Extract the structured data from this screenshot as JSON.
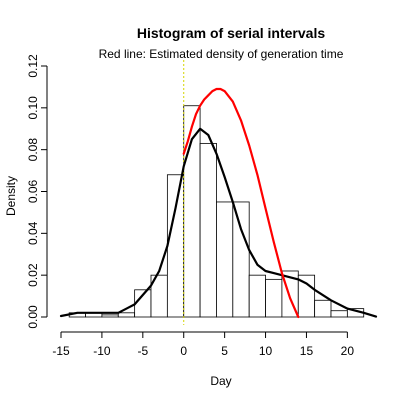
{
  "chart_data": {
    "type": "bar",
    "title": "Histogram of serial intervals",
    "subtitle": "Red line: Estimated density of generation time",
    "xlabel": "Day",
    "ylabel": "Density",
    "xlim": [
      -15,
      23.5
    ],
    "ylim": [
      0,
      0.12
    ],
    "x_ticks": [
      -15,
      -10,
      -5,
      0,
      5,
      10,
      15,
      20
    ],
    "x_tick_labels": [
      "-15",
      "-10",
      "-5",
      "0",
      "5",
      "10",
      "15",
      "20"
    ],
    "y_ticks": [
      0,
      0.02,
      0.04,
      0.06,
      0.08,
      0.1,
      0.12
    ],
    "y_tick_labels": [
      "0.00",
      "0.02",
      "0.04",
      "0.06",
      "0.08",
      "0.10",
      "0.12"
    ],
    "grid": false,
    "vline_x": 0,
    "histogram": {
      "bin_width": 2,
      "bins": [
        {
          "start": -14,
          "end": -12,
          "density": 0.002
        },
        {
          "start": -12,
          "end": -10,
          "density": 0.002
        },
        {
          "start": -10,
          "end": -8,
          "density": 0.001
        },
        {
          "start": -8,
          "end": -6,
          "density": 0.002
        },
        {
          "start": -6,
          "end": -4,
          "density": 0.013
        },
        {
          "start": -4,
          "end": -2,
          "density": 0.02
        },
        {
          "start": -2,
          "end": 0,
          "density": 0.068
        },
        {
          "start": 0,
          "end": 2,
          "density": 0.101
        },
        {
          "start": 2,
          "end": 4,
          "density": 0.083
        },
        {
          "start": 4,
          "end": 6,
          "density": 0.055
        },
        {
          "start": 6,
          "end": 8,
          "density": 0.055
        },
        {
          "start": 8,
          "end": 10,
          "density": 0.02
        },
        {
          "start": 10,
          "end": 12,
          "density": 0.018
        },
        {
          "start": 12,
          "end": 14,
          "density": 0.022
        },
        {
          "start": 14,
          "end": 16,
          "density": 0.02
        },
        {
          "start": 16,
          "end": 18,
          "density": 0.008
        },
        {
          "start": 18,
          "end": 20,
          "density": 0.003
        },
        {
          "start": 20,
          "end": 22,
          "density": 0.004
        }
      ]
    },
    "series": [
      {
        "style": "black-density-line",
        "color": "#000000",
        "x": [
          -15,
          -13,
          -12,
          -10,
          -8,
          -6,
          -4,
          -3,
          -2,
          -1,
          0,
          1,
          2,
          3,
          4,
          5,
          6,
          7,
          8,
          9,
          10,
          11,
          12,
          13,
          14,
          15,
          16,
          18,
          20,
          22,
          23.5
        ],
        "values": [
          0.0005,
          0.002,
          0.002,
          0.002,
          0.002,
          0.006,
          0.015,
          0.022,
          0.034,
          0.052,
          0.072,
          0.085,
          0.09,
          0.087,
          0.078,
          0.067,
          0.055,
          0.042,
          0.032,
          0.025,
          0.022,
          0.021,
          0.02,
          0.019,
          0.018,
          0.016,
          0.013,
          0.008,
          0.004,
          0.002,
          0.0002
        ]
      },
      {
        "style": "red-generation-time-line",
        "color": "#ff0000",
        "x": [
          0,
          0.5,
          1,
          1.5,
          2,
          2.5,
          3,
          3.5,
          4,
          4.5,
          5,
          6,
          7,
          8,
          9,
          10,
          11,
          12,
          13,
          14
        ],
        "values": [
          0.078,
          0.084,
          0.091,
          0.097,
          0.101,
          0.104,
          0.106,
          0.108,
          0.109,
          0.109,
          0.108,
          0.103,
          0.094,
          0.082,
          0.068,
          0.052,
          0.036,
          0.021,
          0.009,
          0.0
        ]
      }
    ]
  }
}
